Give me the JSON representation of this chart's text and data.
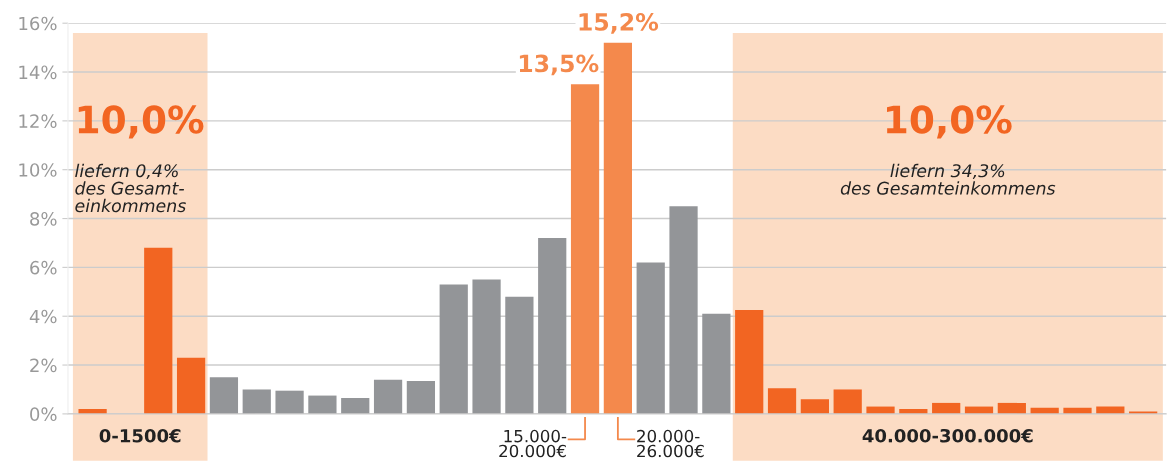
{
  "chart_data": {
    "type": "bar",
    "categories": [
      null,
      null,
      null,
      null,
      null,
      null,
      null,
      null,
      null,
      null,
      null,
      null,
      null,
      null,
      null,
      null,
      null,
      null,
      null,
      null,
      null,
      null,
      null,
      null,
      null,
      null,
      null,
      null,
      null,
      null,
      null,
      null,
      null
    ],
    "values": [
      0.2,
      null,
      6.8,
      2.3,
      1.5,
      1.0,
      0.95,
      0.75,
      0.65,
      1.4,
      1.35,
      5.3,
      5.5,
      4.8,
      7.2,
      13.5,
      15.2,
      6.2,
      8.5,
      4.1,
      4.25,
      1.05,
      0.6,
      1.0,
      0.3,
      0.2,
      0.45,
      0.3,
      0.45,
      0.25,
      0.25,
      0.3,
      0.1
    ],
    "colors": [
      "#f26522",
      "#f26522",
      "#f26522",
      "#f26522",
      "#939598",
      "#939598",
      "#939598",
      "#939598",
      "#939598",
      "#939598",
      "#939598",
      "#939598",
      "#939598",
      "#939598",
      "#939598",
      "#f4894c",
      "#f4894c",
      "#939598",
      "#939598",
      "#939598",
      "#f26522",
      "#f26522",
      "#f26522",
      "#f26522",
      "#f26522",
      "#f26522",
      "#f26522",
      "#f26522",
      "#f26522",
      "#f26522",
      "#f26522",
      "#f26522",
      "#f26522"
    ],
    "value_labels": [
      null,
      null,
      null,
      null,
      null,
      null,
      null,
      null,
      null,
      null,
      null,
      null,
      null,
      null,
      null,
      "13,5%",
      "15,2%",
      null,
      null,
      null,
      null,
      null,
      null,
      null,
      null,
      null,
      null,
      null,
      null,
      null,
      null,
      null,
      null
    ],
    "ylim": [
      0,
      16
    ],
    "yticks": [
      {
        "value": 0,
        "label": "0%"
      },
      {
        "value": 2,
        "label": "2%"
      },
      {
        "value": 4,
        "label": "4%"
      },
      {
        "value": 6,
        "label": "6%"
      },
      {
        "value": 8,
        "label": "8%"
      },
      {
        "value": 10,
        "label": "10%"
      },
      {
        "value": 12,
        "label": "12%"
      },
      {
        "value": 14,
        "label": "14%"
      },
      {
        "value": 16,
        "label": "16%"
      }
    ],
    "grid": "y",
    "annotations": [
      "15.000-\n20.000€",
      "20.000-\n26.000€",
      "0-1500€",
      "10,0%",
      "liefern 0,4%\ndes Gesamt-\neinkommens",
      "40.000-300.000€",
      "10,0%",
      "liefern 34,3%\ndes Gesamteinkommens"
    ]
  }
}
